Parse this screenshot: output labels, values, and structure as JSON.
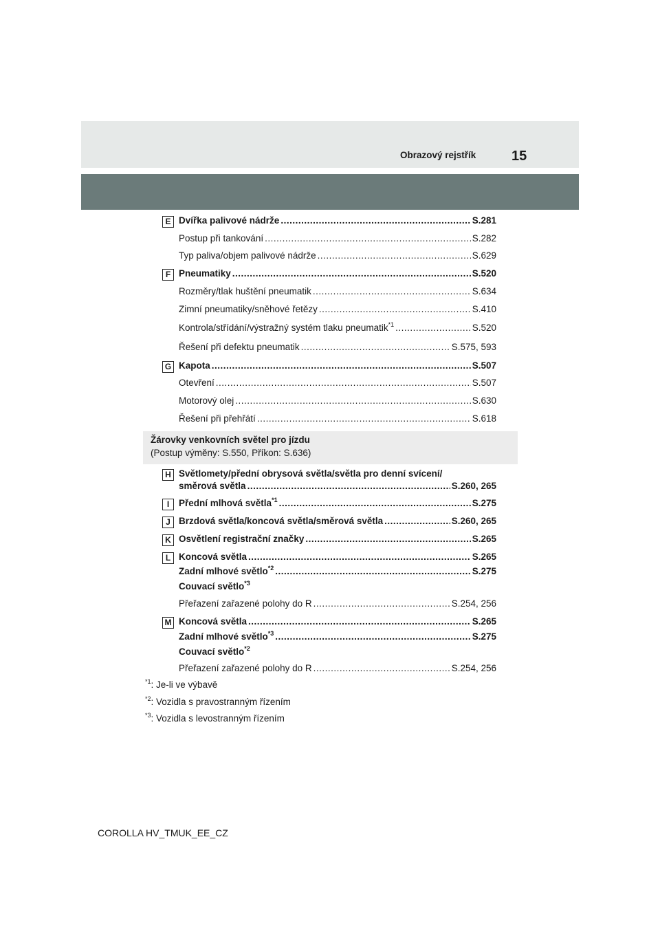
{
  "header": {
    "title": "Obrazový rejstřík",
    "page_number": "15",
    "colors": {
      "light_band": "#e6e9e8",
      "dark_band": "#6b7b7a"
    }
  },
  "sections": [
    {
      "letter": "E",
      "top": 314,
      "items": [
        {
          "text": "Dvířka palivové nádrže",
          "page": "S.281",
          "bold": true
        },
        {
          "text": "Postup při tankování",
          "page": "S.282"
        },
        {
          "text": "Typ paliva/objem palivové nádrže",
          "page": "S.629"
        }
      ]
    },
    {
      "letter": "F",
      "items": [
        {
          "text": "Pneumatiky",
          "page": "S.520",
          "bold": true
        },
        {
          "text": "Rozměry/tlak huštění pneumatik",
          "page": "S.634"
        },
        {
          "text": "Zimní pneumatiky/sněhové řetězy",
          "page": "S.410"
        },
        {
          "text": "Kontrola/střídání/výstražný systém tlaku pneumatik",
          "sup": "*1",
          "page": "S.520"
        },
        {
          "text": "Řešení při defektu pneumatik",
          "page": "S.575, 593"
        }
      ]
    },
    {
      "letter": "G",
      "items": [
        {
          "text": "Kapota",
          "page": "S.507",
          "bold": true
        },
        {
          "text": "Otevření",
          "page": "S.507"
        },
        {
          "text": "Motorový olej",
          "page": "S.630"
        },
        {
          "text": "Řešení při přehřátí",
          "page": "S.618"
        }
      ]
    }
  ],
  "bulbs_box": {
    "title": "Žárovky venkovních světel pro jízdu",
    "subtitle": "(Postup výměny: S.550, Příkon: S.636)"
  },
  "bulbs": [
    {
      "letter": "H",
      "line1": "Světlomety/přední obrysová světla/světla pro denní svícení/",
      "text": "směrová světla",
      "page": "S.260, 265",
      "bold": true
    },
    {
      "letter": "I",
      "text": "Přední mlhová světla",
      "sup": "*1",
      "page": "S.275",
      "bold": true
    },
    {
      "letter": "J",
      "text": "Brzdová světla/koncová světla/směrová světla",
      "page": "S.260, 265",
      "bold": true
    },
    {
      "letter": "K",
      "text": "Osvětlení registrační značky",
      "page": "S.265",
      "bold": true
    },
    {
      "letter": "L",
      "text": "Koncová světla",
      "page": "S.265",
      "bold": true
    },
    {
      "text": "Zadní mlhové světlo",
      "sup": "*2",
      "page": "S.275",
      "bold": true
    },
    {
      "text": "Couvací světlo",
      "sup": "*3",
      "bold": true
    },
    {
      "text": "Přeřazení zařazené polohy do R",
      "page": "S.254, 256"
    },
    {
      "letter": "M",
      "text": "Koncová světla",
      "page": "S.265",
      "bold": true
    },
    {
      "text": "Zadní mlhové světlo",
      "sup": "*3",
      "page": "S.275",
      "bold": true
    },
    {
      "text": "Couvací světlo",
      "sup": "*2",
      "bold": true
    },
    {
      "text": "Přeřazení zařazené polohy do R",
      "page": "S.254, 256"
    }
  ],
  "footnotes": [
    {
      "mark": "*1",
      "text": ": Je-li ve výbavě"
    },
    {
      "mark": "*2",
      "text": ": Vozidla s pravostranným řízením"
    },
    {
      "mark": "*3",
      "text": ": Vozidla s levostranným řízením"
    }
  ],
  "footer": "COROLLA HV_TMUK_EE_CZ"
}
